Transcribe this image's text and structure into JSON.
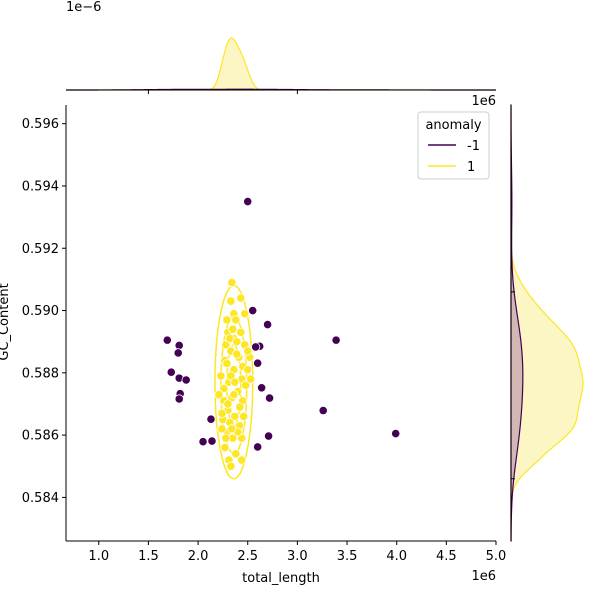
{
  "chart_data": {
    "type": "scatter",
    "xlabel": "total_length",
    "ylabel": "GC_Content",
    "x_offset_label": "1e6",
    "y_right_offset_label": "1e6",
    "top_offset_label": "1e−6",
    "xlim": [
      0.67,
      5.0
    ],
    "ylim": [
      0.5826,
      0.5966
    ],
    "xticks": [
      "1.0",
      "1.5",
      "2.0",
      "2.5",
      "3.0",
      "3.5",
      "4.0",
      "4.5",
      "5.0"
    ],
    "yticks": [
      "0.584",
      "0.586",
      "0.588",
      "0.590",
      "0.592",
      "0.594",
      "0.596"
    ],
    "legend": {
      "title": "anomaly",
      "placement": "top-right",
      "entries": [
        {
          "label": "-1",
          "color": "#440154"
        },
        {
          "label": "1",
          "color": "#fde725"
        }
      ]
    },
    "colors": {
      "anomaly": "#440154",
      "normal": "#fde725",
      "normal_fill": "#fcf5c4"
    },
    "series": [
      {
        "name": "-1",
        "points": [
          [
            2.5,
            0.5935
          ],
          [
            1.69,
            0.58905
          ],
          [
            1.81,
            0.58888
          ],
          [
            1.8,
            0.58864
          ],
          [
            1.73,
            0.58802
          ],
          [
            1.81,
            0.58783
          ],
          [
            1.88,
            0.58777
          ],
          [
            1.82,
            0.58733
          ],
          [
            1.81,
            0.58716
          ],
          [
            2.13,
            0.58651
          ],
          [
            2.05,
            0.58579
          ],
          [
            2.14,
            0.58581
          ],
          [
            2.6,
            0.58562
          ],
          [
            2.71,
            0.58597
          ],
          [
            3.26,
            0.58679
          ],
          [
            3.99,
            0.58605
          ],
          [
            2.72,
            0.58719
          ],
          [
            2.64,
            0.58752
          ],
          [
            2.6,
            0.58831
          ],
          [
            2.62,
            0.58885
          ],
          [
            2.58,
            0.58883
          ],
          [
            2.7,
            0.58955
          ],
          [
            2.55,
            0.59
          ],
          [
            3.39,
            0.58905
          ]
        ]
      },
      {
        "name": "1",
        "points": [
          [
            2.34,
            0.5909
          ],
          [
            2.33,
            0.5903
          ],
          [
            2.29,
            0.5897
          ],
          [
            2.36,
            0.5899
          ],
          [
            2.3,
            0.5893
          ],
          [
            2.36,
            0.5891
          ],
          [
            2.43,
            0.5904
          ],
          [
            2.47,
            0.5899
          ],
          [
            2.38,
            0.5897
          ],
          [
            2.28,
            0.5889
          ],
          [
            2.33,
            0.5887
          ],
          [
            2.41,
            0.5885
          ],
          [
            2.47,
            0.5889
          ],
          [
            2.27,
            0.5884
          ],
          [
            2.36,
            0.5881
          ],
          [
            2.44,
            0.5878
          ],
          [
            2.31,
            0.5877
          ],
          [
            2.23,
            0.5879
          ],
          [
            2.4,
            0.5874
          ],
          [
            2.34,
            0.5872
          ],
          [
            2.26,
            0.5871
          ],
          [
            2.45,
            0.5871
          ],
          [
            2.3,
            0.5868
          ],
          [
            2.37,
            0.5866
          ],
          [
            2.25,
            0.5865
          ],
          [
            2.42,
            0.5863
          ],
          [
            2.29,
            0.5861
          ],
          [
            2.35,
            0.5859
          ],
          [
            2.44,
            0.5859
          ],
          [
            2.27,
            0.5856
          ],
          [
            2.38,
            0.5854
          ],
          [
            2.31,
            0.5852
          ],
          [
            2.44,
            0.5852
          ],
          [
            2.33,
            0.585
          ],
          [
            2.24,
            0.5867
          ],
          [
            2.39,
            0.5886
          ],
          [
            2.29,
            0.5883
          ],
          [
            2.45,
            0.5882
          ],
          [
            2.33,
            0.5879
          ],
          [
            2.26,
            0.5875
          ],
          [
            2.37,
            0.5877
          ],
          [
            2.42,
            0.5869
          ],
          [
            2.32,
            0.5864
          ],
          [
            2.4,
            0.5861
          ],
          [
            2.28,
            0.5859
          ],
          [
            2.36,
            0.5873
          ],
          [
            2.24,
            0.5862
          ],
          [
            2.46,
            0.5866
          ],
          [
            2.35,
            0.5894
          ],
          [
            2.43,
            0.5893
          ],
          [
            2.32,
            0.5891
          ],
          [
            2.39,
            0.589
          ],
          [
            2.5,
            0.5881
          ],
          [
            2.48,
            0.5876
          ],
          [
            2.21,
            0.5873
          ],
          [
            2.52,
            0.5885
          ],
          [
            2.53,
            0.5878
          ],
          [
            2.5,
            0.5887
          ],
          [
            2.3,
            0.587
          ],
          [
            2.34,
            0.5862
          ]
        ]
      }
    ],
    "contour": {
      "series": "1",
      "levels": [
        {
          "center": [
            2.36,
            0.5877
          ],
          "half_width": 0.19,
          "half_height": 0.0031
        },
        {
          "center": [
            2.36,
            0.5876
          ],
          "half_width": 0.13,
          "half_height": 0.0022
        },
        {
          "center": [
            2.36,
            0.5876
          ],
          "half_width": 0.07,
          "half_height": 0.0013
        }
      ]
    }
  }
}
